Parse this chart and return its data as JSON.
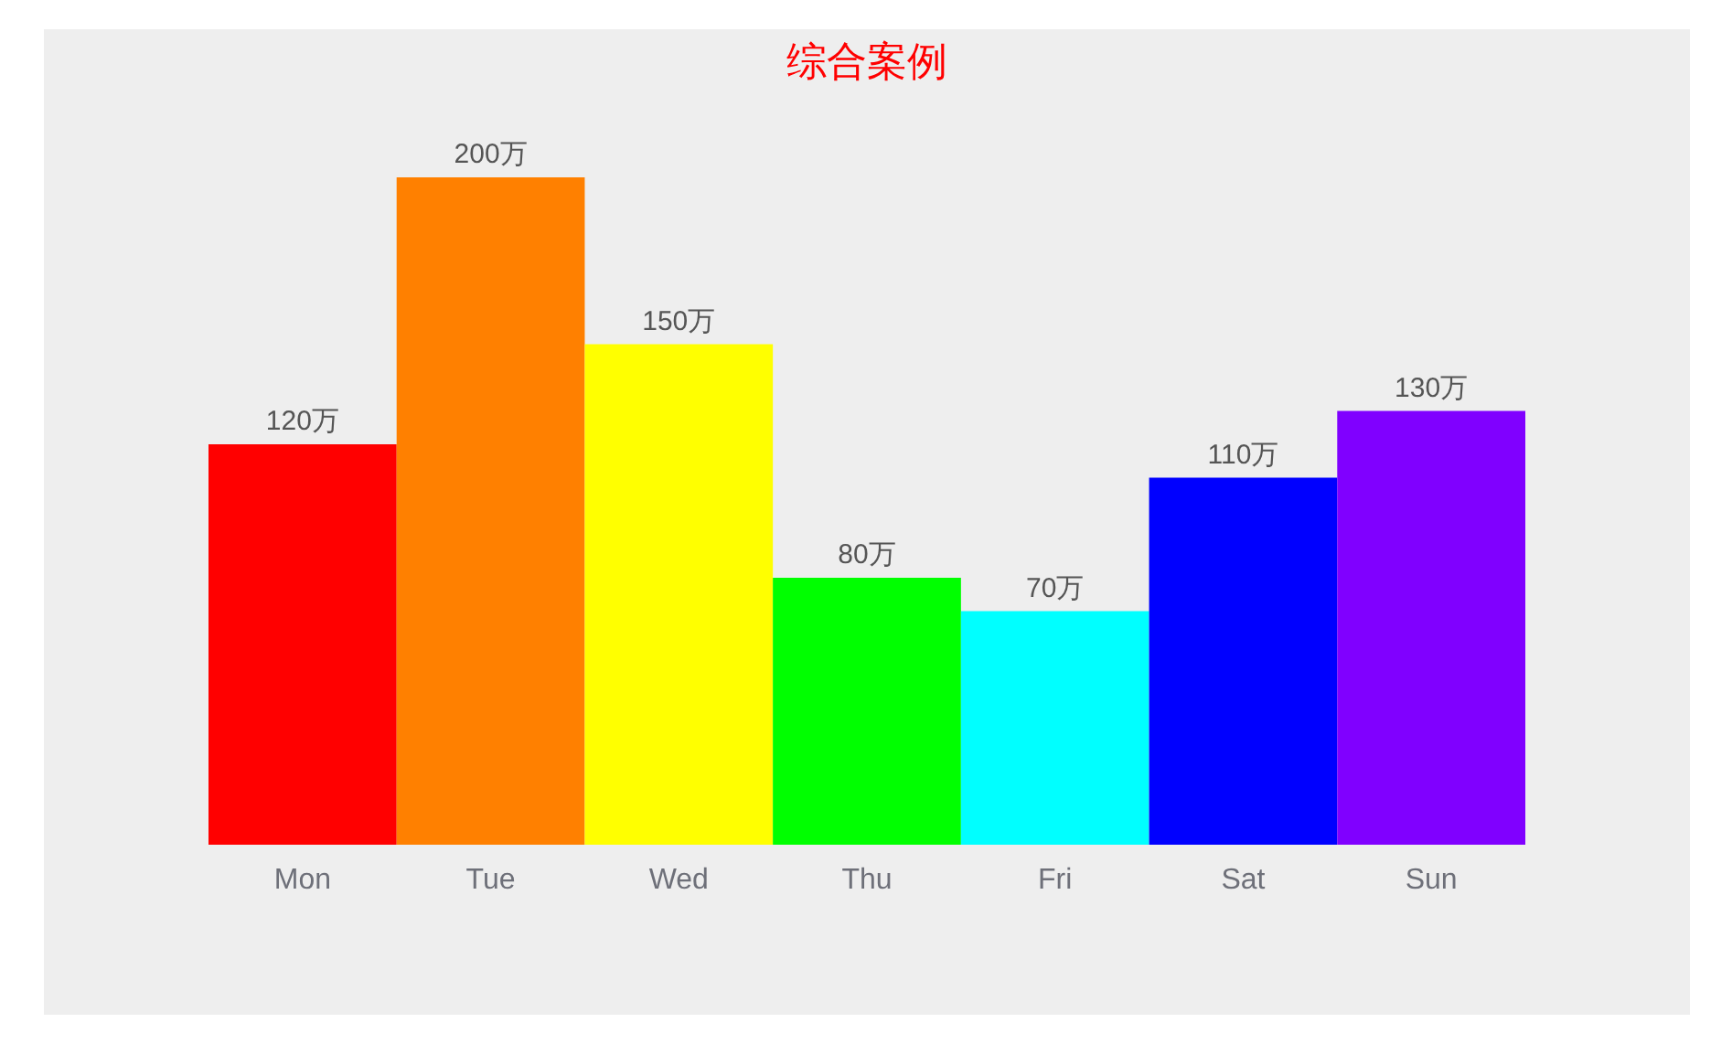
{
  "chart_data": {
    "type": "bar",
    "title": "综合案例",
    "categories": [
      "Mon",
      "Tue",
      "Wed",
      "Thu",
      "Fri",
      "Sat",
      "Sun"
    ],
    "values": [
      120,
      200,
      150,
      80,
      70,
      110,
      130
    ],
    "colors": [
      "#ff0000",
      "#ff8000",
      "#ffff00",
      "#00ff00",
      "#00ffff",
      "#0000ff",
      "#8000ff"
    ],
    "value_labels": [
      "120万",
      "200万",
      "150万",
      "80万",
      "70万",
      "110万",
      "130万"
    ]
  }
}
